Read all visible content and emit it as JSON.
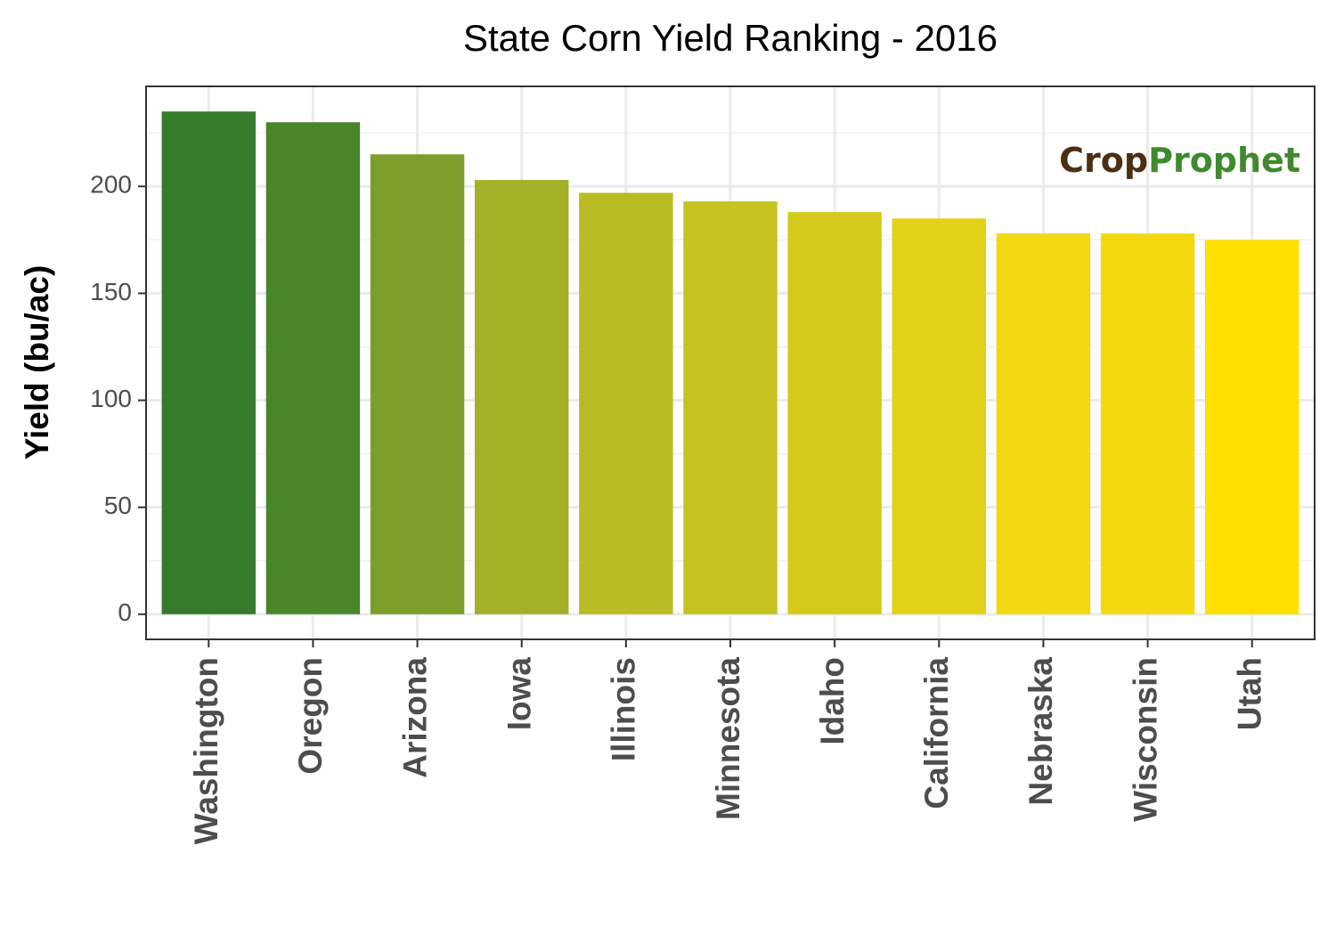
{
  "chart_data": {
    "type": "bar",
    "title": "State Corn Yield Ranking - 2016",
    "y_label": "Yield (bu/ac)",
    "logo": {
      "first": "Crop",
      "second": "Prophet"
    },
    "categories": [
      "Washington",
      "Oregon",
      "Arizona",
      "Iowa",
      "Illinois",
      "Minnesota",
      "Idaho",
      "California",
      "Nebraska",
      "Wisconsin",
      "Utah"
    ],
    "values": [
      235,
      230,
      215,
      203,
      197,
      193,
      188,
      185,
      178,
      178,
      175
    ],
    "colors": [
      "#367a2c",
      "#4a852c",
      "#7e9e2b",
      "#a3b028",
      "#b9bb23",
      "#c6c320",
      "#d4ca1b",
      "#e2d117",
      "#f1d811",
      "#f4d90e",
      "#fee000"
    ],
    "ylim": [
      -11.75,
      246.75
    ],
    "yticks": [
      0,
      50,
      100,
      150,
      200
    ],
    "yminorticks": [
      25,
      75,
      125,
      175,
      225
    ],
    "grid": true
  }
}
